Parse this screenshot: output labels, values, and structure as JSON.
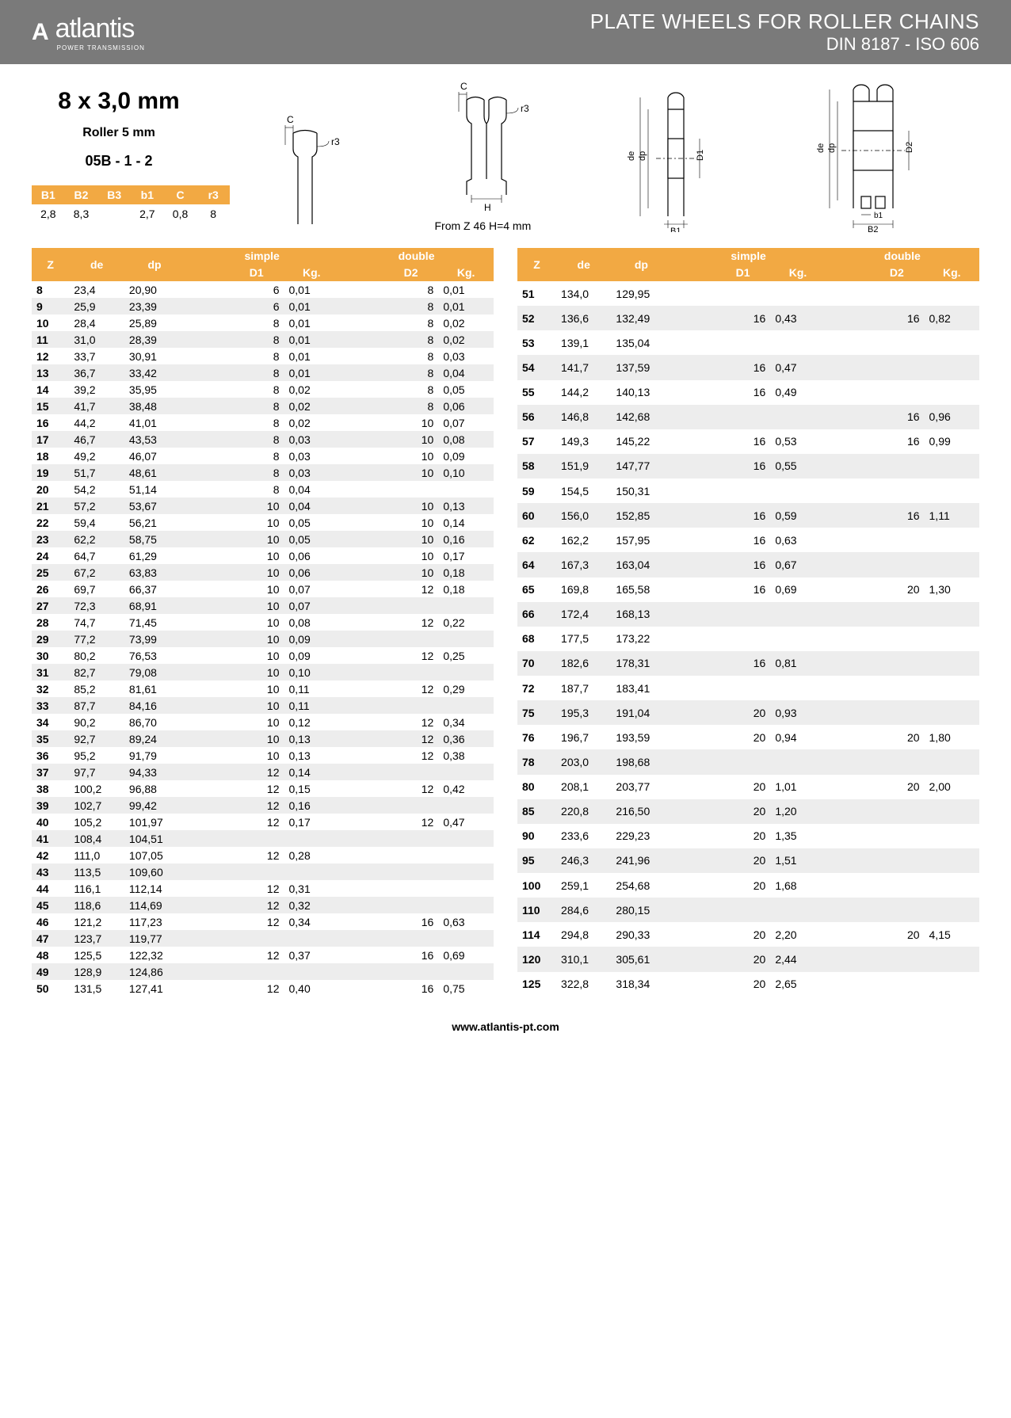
{
  "brand": {
    "name": "atlantis",
    "sub": "POWER TRANSMISSION",
    "mark": "A"
  },
  "header": {
    "title": "PLATE WHEELS FOR ROLLER CHAINS",
    "sub": "DIN 8187 - ISO 606"
  },
  "product": {
    "title": "8 x 3,0 mm",
    "roller": "Roller 5 mm",
    "code": "05B - 1 - 2"
  },
  "note": "From Z 46 H=4 mm",
  "params": {
    "headers": [
      "B1",
      "B2",
      "B3",
      "b1",
      "C",
      "r3"
    ],
    "values": [
      "2,8",
      "8,3",
      "",
      "2,7",
      "0,8",
      "8"
    ]
  },
  "diag_labels": {
    "C": "C",
    "r3": "r3",
    "H": "H",
    "de": "de",
    "dp": "dp",
    "D1": "D1",
    "D2": "D2",
    "B1": "B1",
    "b1": "b1",
    "B2": "B2"
  },
  "table_headers": {
    "Z": "Z",
    "de": "de",
    "dp": "dp",
    "simple": "simple",
    "double": "double",
    "D1": "D1",
    "D2": "D2",
    "Kg": "Kg."
  },
  "left_rows": [
    {
      "z": "8",
      "de": "23,4",
      "dp": "20,90",
      "d1": "6",
      "kg1": "0,01",
      "d2": "8",
      "kg2": "0,01"
    },
    {
      "z": "9",
      "de": "25,9",
      "dp": "23,39",
      "d1": "6",
      "kg1": "0,01",
      "d2": "8",
      "kg2": "0,01"
    },
    {
      "z": "10",
      "de": "28,4",
      "dp": "25,89",
      "d1": "8",
      "kg1": "0,01",
      "d2": "8",
      "kg2": "0,02"
    },
    {
      "z": "11",
      "de": "31,0",
      "dp": "28,39",
      "d1": "8",
      "kg1": "0,01",
      "d2": "8",
      "kg2": "0,02"
    },
    {
      "z": "12",
      "de": "33,7",
      "dp": "30,91",
      "d1": "8",
      "kg1": "0,01",
      "d2": "8",
      "kg2": "0,03"
    },
    {
      "z": "13",
      "de": "36,7",
      "dp": "33,42",
      "d1": "8",
      "kg1": "0,01",
      "d2": "8",
      "kg2": "0,04"
    },
    {
      "z": "14",
      "de": "39,2",
      "dp": "35,95",
      "d1": "8",
      "kg1": "0,02",
      "d2": "8",
      "kg2": "0,05"
    },
    {
      "z": "15",
      "de": "41,7",
      "dp": "38,48",
      "d1": "8",
      "kg1": "0,02",
      "d2": "8",
      "kg2": "0,06"
    },
    {
      "z": "16",
      "de": "44,2",
      "dp": "41,01",
      "d1": "8",
      "kg1": "0,02",
      "d2": "10",
      "kg2": "0,07"
    },
    {
      "z": "17",
      "de": "46,7",
      "dp": "43,53",
      "d1": "8",
      "kg1": "0,03",
      "d2": "10",
      "kg2": "0,08"
    },
    {
      "z": "18",
      "de": "49,2",
      "dp": "46,07",
      "d1": "8",
      "kg1": "0,03",
      "d2": "10",
      "kg2": "0,09"
    },
    {
      "z": "19",
      "de": "51,7",
      "dp": "48,61",
      "d1": "8",
      "kg1": "0,03",
      "d2": "10",
      "kg2": "0,10"
    },
    {
      "z": "20",
      "de": "54,2",
      "dp": "51,14",
      "d1": "8",
      "kg1": "0,04",
      "d2": "",
      "kg2": ""
    },
    {
      "z": "21",
      "de": "57,2",
      "dp": "53,67",
      "d1": "10",
      "kg1": "0,04",
      "d2": "10",
      "kg2": "0,13"
    },
    {
      "z": "22",
      "de": "59,4",
      "dp": "56,21",
      "d1": "10",
      "kg1": "0,05",
      "d2": "10",
      "kg2": "0,14"
    },
    {
      "z": "23",
      "de": "62,2",
      "dp": "58,75",
      "d1": "10",
      "kg1": "0,05",
      "d2": "10",
      "kg2": "0,16"
    },
    {
      "z": "24",
      "de": "64,7",
      "dp": "61,29",
      "d1": "10",
      "kg1": "0,06",
      "d2": "10",
      "kg2": "0,17"
    },
    {
      "z": "25",
      "de": "67,2",
      "dp": "63,83",
      "d1": "10",
      "kg1": "0,06",
      "d2": "10",
      "kg2": "0,18"
    },
    {
      "z": "26",
      "de": "69,7",
      "dp": "66,37",
      "d1": "10",
      "kg1": "0,07",
      "d2": "12",
      "kg2": "0,18"
    },
    {
      "z": "27",
      "de": "72,3",
      "dp": "68,91",
      "d1": "10",
      "kg1": "0,07",
      "d2": "",
      "kg2": ""
    },
    {
      "z": "28",
      "de": "74,7",
      "dp": "71,45",
      "d1": "10",
      "kg1": "0,08",
      "d2": "12",
      "kg2": "0,22"
    },
    {
      "z": "29",
      "de": "77,2",
      "dp": "73,99",
      "d1": "10",
      "kg1": "0,09",
      "d2": "",
      "kg2": ""
    },
    {
      "z": "30",
      "de": "80,2",
      "dp": "76,53",
      "d1": "10",
      "kg1": "0,09",
      "d2": "12",
      "kg2": "0,25"
    },
    {
      "z": "31",
      "de": "82,7",
      "dp": "79,08",
      "d1": "10",
      "kg1": "0,10",
      "d2": "",
      "kg2": ""
    },
    {
      "z": "32",
      "de": "85,2",
      "dp": "81,61",
      "d1": "10",
      "kg1": "0,11",
      "d2": "12",
      "kg2": "0,29"
    },
    {
      "z": "33",
      "de": "87,7",
      "dp": "84,16",
      "d1": "10",
      "kg1": "0,11",
      "d2": "",
      "kg2": ""
    },
    {
      "z": "34",
      "de": "90,2",
      "dp": "86,70",
      "d1": "10",
      "kg1": "0,12",
      "d2": "12",
      "kg2": "0,34"
    },
    {
      "z": "35",
      "de": "92,7",
      "dp": "89,24",
      "d1": "10",
      "kg1": "0,13",
      "d2": "12",
      "kg2": "0,36"
    },
    {
      "z": "36",
      "de": "95,2",
      "dp": "91,79",
      "d1": "10",
      "kg1": "0,13",
      "d2": "12",
      "kg2": "0,38"
    },
    {
      "z": "37",
      "de": "97,7",
      "dp": "94,33",
      "d1": "12",
      "kg1": "0,14",
      "d2": "",
      "kg2": ""
    },
    {
      "z": "38",
      "de": "100,2",
      "dp": "96,88",
      "d1": "12",
      "kg1": "0,15",
      "d2": "12",
      "kg2": "0,42"
    },
    {
      "z": "39",
      "de": "102,7",
      "dp": "99,42",
      "d1": "12",
      "kg1": "0,16",
      "d2": "",
      "kg2": ""
    },
    {
      "z": "40",
      "de": "105,2",
      "dp": "101,97",
      "d1": "12",
      "kg1": "0,17",
      "d2": "12",
      "kg2": "0,47"
    },
    {
      "z": "41",
      "de": "108,4",
      "dp": "104,51",
      "d1": "",
      "kg1": "",
      "d2": "",
      "kg2": ""
    },
    {
      "z": "42",
      "de": "111,0",
      "dp": "107,05",
      "d1": "12",
      "kg1": "0,28",
      "d2": "",
      "kg2": ""
    },
    {
      "z": "43",
      "de": "113,5",
      "dp": "109,60",
      "d1": "",
      "kg1": "",
      "d2": "",
      "kg2": ""
    },
    {
      "z": "44",
      "de": "116,1",
      "dp": "112,14",
      "d1": "12",
      "kg1": "0,31",
      "d2": "",
      "kg2": ""
    },
    {
      "z": "45",
      "de": "118,6",
      "dp": "114,69",
      "d1": "12",
      "kg1": "0,32",
      "d2": "",
      "kg2": ""
    },
    {
      "z": "46",
      "de": "121,2",
      "dp": "117,23",
      "d1": "12",
      "kg1": "0,34",
      "d2": "16",
      "kg2": "0,63"
    },
    {
      "z": "47",
      "de": "123,7",
      "dp": "119,77",
      "d1": "",
      "kg1": "",
      "d2": "",
      "kg2": ""
    },
    {
      "z": "48",
      "de": "125,5",
      "dp": "122,32",
      "d1": "12",
      "kg1": "0,37",
      "d2": "16",
      "kg2": "0,69"
    },
    {
      "z": "49",
      "de": "128,9",
      "dp": "124,86",
      "d1": "",
      "kg1": "",
      "d2": "",
      "kg2": ""
    },
    {
      "z": "50",
      "de": "131,5",
      "dp": "127,41",
      "d1": "12",
      "kg1": "0,40",
      "d2": "16",
      "kg2": "0,75"
    }
  ],
  "right_rows": [
    {
      "z": "51",
      "de": "134,0",
      "dp": "129,95",
      "d1": "",
      "kg1": "",
      "d2": "",
      "kg2": ""
    },
    {
      "z": "52",
      "de": "136,6",
      "dp": "132,49",
      "d1": "16",
      "kg1": "0,43",
      "d2": "16",
      "kg2": "0,82"
    },
    {
      "z": "53",
      "de": "139,1",
      "dp": "135,04",
      "d1": "",
      "kg1": "",
      "d2": "",
      "kg2": ""
    },
    {
      "z": "54",
      "de": "141,7",
      "dp": "137,59",
      "d1": "16",
      "kg1": "0,47",
      "d2": "",
      "kg2": ""
    },
    {
      "z": "55",
      "de": "144,2",
      "dp": "140,13",
      "d1": "16",
      "kg1": "0,49",
      "d2": "",
      "kg2": ""
    },
    {
      "z": "56",
      "de": "146,8",
      "dp": "142,68",
      "d1": "",
      "kg1": "",
      "d2": "16",
      "kg2": "0,96"
    },
    {
      "z": "57",
      "de": "149,3",
      "dp": "145,22",
      "d1": "16",
      "kg1": "0,53",
      "d2": "16",
      "kg2": "0,99"
    },
    {
      "z": "58",
      "de": "151,9",
      "dp": "147,77",
      "d1": "16",
      "kg1": "0,55",
      "d2": "",
      "kg2": ""
    },
    {
      "z": "59",
      "de": "154,5",
      "dp": "150,31",
      "d1": "",
      "kg1": "",
      "d2": "",
      "kg2": ""
    },
    {
      "z": "60",
      "de": "156,0",
      "dp": "152,85",
      "d1": "16",
      "kg1": "0,59",
      "d2": "16",
      "kg2": "1,11"
    },
    {
      "z": "62",
      "de": "162,2",
      "dp": "157,95",
      "d1": "16",
      "kg1": "0,63",
      "d2": "",
      "kg2": ""
    },
    {
      "z": "64",
      "de": "167,3",
      "dp": "163,04",
      "d1": "16",
      "kg1": "0,67",
      "d2": "",
      "kg2": ""
    },
    {
      "z": "65",
      "de": "169,8",
      "dp": "165,58",
      "d1": "16",
      "kg1": "0,69",
      "d2": "20",
      "kg2": "1,30"
    },
    {
      "z": "66",
      "de": "172,4",
      "dp": "168,13",
      "d1": "",
      "kg1": "",
      "d2": "",
      "kg2": ""
    },
    {
      "z": "68",
      "de": "177,5",
      "dp": "173,22",
      "d1": "",
      "kg1": "",
      "d2": "",
      "kg2": ""
    },
    {
      "z": "70",
      "de": "182,6",
      "dp": "178,31",
      "d1": "16",
      "kg1": "0,81",
      "d2": "",
      "kg2": ""
    },
    {
      "z": "72",
      "de": "187,7",
      "dp": "183,41",
      "d1": "",
      "kg1": "",
      "d2": "",
      "kg2": ""
    },
    {
      "z": "75",
      "de": "195,3",
      "dp": "191,04",
      "d1": "20",
      "kg1": "0,93",
      "d2": "",
      "kg2": ""
    },
    {
      "z": "76",
      "de": "196,7",
      "dp": "193,59",
      "d1": "20",
      "kg1": "0,94",
      "d2": "20",
      "kg2": "1,80"
    },
    {
      "z": "78",
      "de": "203,0",
      "dp": "198,68",
      "d1": "",
      "kg1": "",
      "d2": "",
      "kg2": ""
    },
    {
      "z": "80",
      "de": "208,1",
      "dp": "203,77",
      "d1": "20",
      "kg1": "1,01",
      "d2": "20",
      "kg2": "2,00"
    },
    {
      "z": "85",
      "de": "220,8",
      "dp": "216,50",
      "d1": "20",
      "kg1": "1,20",
      "d2": "",
      "kg2": ""
    },
    {
      "z": "90",
      "de": "233,6",
      "dp": "229,23",
      "d1": "20",
      "kg1": "1,35",
      "d2": "",
      "kg2": ""
    },
    {
      "z": "95",
      "de": "246,3",
      "dp": "241,96",
      "d1": "20",
      "kg1": "1,51",
      "d2": "",
      "kg2": ""
    },
    {
      "z": "100",
      "de": "259,1",
      "dp": "254,68",
      "d1": "20",
      "kg1": "1,68",
      "d2": "",
      "kg2": ""
    },
    {
      "z": "110",
      "de": "284,6",
      "dp": "280,15",
      "d1": "",
      "kg1": "",
      "d2": "",
      "kg2": ""
    },
    {
      "z": "114",
      "de": "294,8",
      "dp": "290,33",
      "d1": "20",
      "kg1": "2,20",
      "d2": "20",
      "kg2": "4,15"
    },
    {
      "z": "120",
      "de": "310,1",
      "dp": "305,61",
      "d1": "20",
      "kg1": "2,44",
      "d2": "",
      "kg2": ""
    },
    {
      "z": "125",
      "de": "322,8",
      "dp": "318,34",
      "d1": "20",
      "kg1": "2,65",
      "d2": "",
      "kg2": ""
    }
  ],
  "footer": "www.atlantis-pt.com",
  "colors": {
    "header_bg": "#7a7a7a",
    "accent": "#f2a943",
    "stripe": "#ededed"
  }
}
